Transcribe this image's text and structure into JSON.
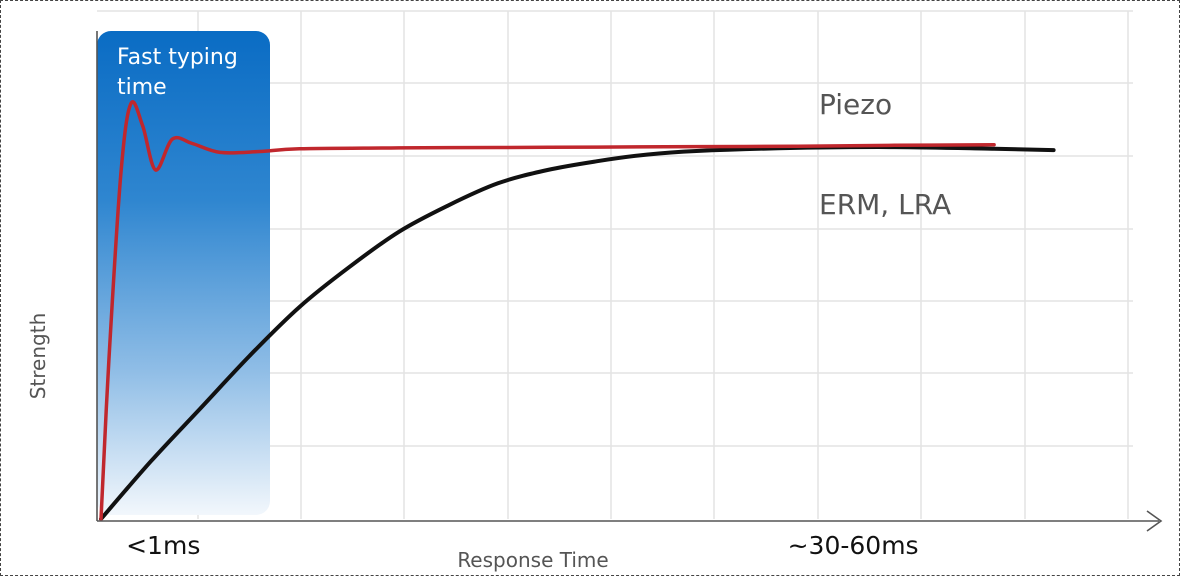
{
  "chart_data": {
    "type": "line",
    "title": "",
    "xlabel": "Response Time",
    "ylabel": "Strength",
    "highlight": {
      "label_line1": "Fast typing",
      "label_line2": "time"
    },
    "x_ticks": [
      {
        "label": "<1ms",
        "x": 1
      },
      {
        "label": "~30-60ms",
        "x": 7
      }
    ],
    "series": [
      {
        "name": "Piezo",
        "color": "#c0272d",
        "x": [
          0,
          0.08,
          0.2,
          0.3,
          0.42,
          0.55,
          0.72,
          0.92,
          1.2,
          1.6,
          2.0,
          3.0,
          4.0,
          5.0,
          6.0,
          7.0,
          8.0,
          9.0
        ],
        "y": [
          0.0,
          0.36,
          0.78,
          0.94,
          0.89,
          0.79,
          0.86,
          0.85,
          0.83,
          0.832,
          0.838,
          0.84,
          0.841,
          0.842,
          0.843,
          0.844,
          0.846,
          0.847
        ]
      },
      {
        "name": "ERM, LRA",
        "color": "#111111",
        "x": [
          0,
          0.5,
          1.0,
          1.5,
          2.0,
          2.5,
          3.0,
          3.5,
          4.0,
          4.5,
          5.0,
          5.5,
          6.0,
          7.0,
          8.0,
          9.0,
          9.6
        ],
        "y": [
          0.0,
          0.13,
          0.25,
          0.37,
          0.48,
          0.57,
          0.65,
          0.71,
          0.76,
          0.79,
          0.81,
          0.825,
          0.833,
          0.84,
          0.842,
          0.838,
          0.835
        ]
      }
    ],
    "xlim": [
      0,
      10.4
    ],
    "ylim": [
      0,
      1.15
    ],
    "grid": true
  }
}
